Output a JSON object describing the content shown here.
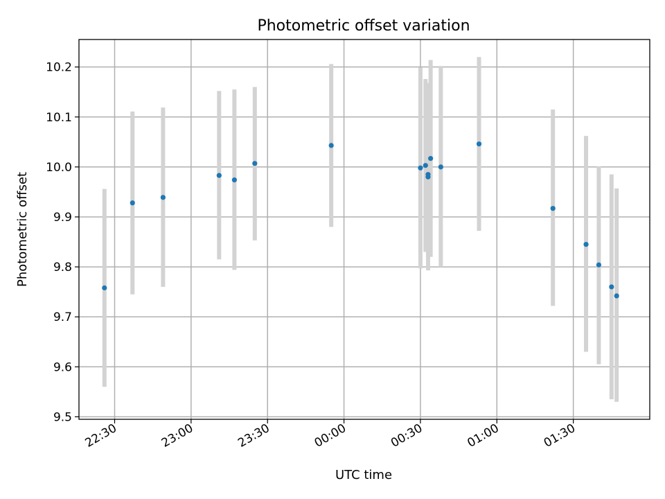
{
  "chart_data": {
    "type": "scatter",
    "title": "Photometric offset variation",
    "xlabel": "UTC time",
    "ylabel": "Photometric offset",
    "xlim": [
      "22:16",
      "02:00"
    ],
    "ylim": [
      9.495,
      10.255
    ],
    "x_ticks": [
      "22:30",
      "23:00",
      "23:30",
      "00:00",
      "00:30",
      "01:00",
      "01:30"
    ],
    "y_ticks": [
      9.5,
      9.6,
      9.7,
      9.8,
      9.9,
      10.0,
      10.1,
      10.2
    ],
    "y_tick_labels": [
      "9.5",
      "9.6",
      "9.7",
      "9.8",
      "9.9",
      "10.0",
      "10.1",
      "10.2"
    ],
    "grid": true,
    "colors": {
      "point": "#1f77b4",
      "error_bar": "#d3d3d3",
      "grid": "#b0b0b0"
    },
    "points": [
      {
        "time": "22:26",
        "y": 9.758,
        "yerr_low": 9.56,
        "yerr_high": 9.956
      },
      {
        "time": "22:37",
        "y": 9.928,
        "yerr_low": 9.745,
        "yerr_high": 10.111
      },
      {
        "time": "22:49",
        "y": 9.939,
        "yerr_low": 9.76,
        "yerr_high": 10.119
      },
      {
        "time": "23:11",
        "y": 9.983,
        "yerr_low": 9.815,
        "yerr_high": 10.152
      },
      {
        "time": "23:17",
        "y": 9.974,
        "yerr_low": 9.794,
        "yerr_high": 10.155
      },
      {
        "time": "23:25",
        "y": 10.007,
        "yerr_low": 9.853,
        "yerr_high": 10.16
      },
      {
        "time": "23:55",
        "y": 10.043,
        "yerr_low": 9.88,
        "yerr_high": 10.206
      },
      {
        "time": "00:30",
        "y": 9.998,
        "yerr_low": 9.797,
        "yerr_high": 10.199
      },
      {
        "time": "00:32",
        "y": 10.003,
        "yerr_low": 9.83,
        "yerr_high": 10.176
      },
      {
        "time": "00:33",
        "y": 9.98,
        "yerr_low": 9.793,
        "yerr_high": 10.168
      },
      {
        "time": "00:33",
        "y": 9.985,
        "yerr_low": 9.82,
        "yerr_high": 10.15
      },
      {
        "time": "00:34",
        "y": 10.017,
        "yerr_low": 9.82,
        "yerr_high": 10.214
      },
      {
        "time": "00:38",
        "y": 10.0,
        "yerr_low": 9.8,
        "yerr_high": 10.202
      },
      {
        "time": "00:53",
        "y": 10.046,
        "yerr_low": 9.872,
        "yerr_high": 10.22
      },
      {
        "time": "01:22",
        "y": 9.917,
        "yerr_low": 9.722,
        "yerr_high": 10.115
      },
      {
        "time": "01:35",
        "y": 9.845,
        "yerr_low": 9.63,
        "yerr_high": 10.062
      },
      {
        "time": "01:40",
        "y": 9.804,
        "yerr_low": 9.605,
        "yerr_high": 10.001
      },
      {
        "time": "01:45",
        "y": 9.76,
        "yerr_low": 9.535,
        "yerr_high": 9.985
      },
      {
        "time": "01:47",
        "y": 9.742,
        "yerr_low": 9.53,
        "yerr_high": 9.957
      }
    ]
  }
}
